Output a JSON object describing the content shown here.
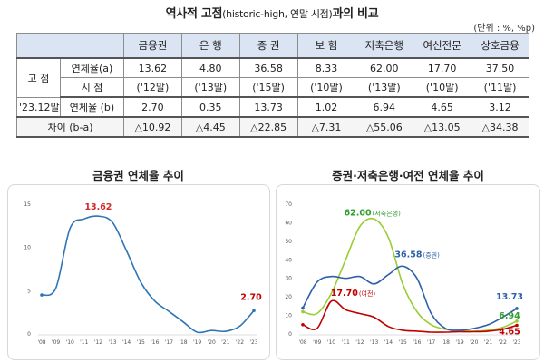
{
  "title_main": "역사적 고점",
  "title_paren": "(historic-high, 연말 시점)",
  "title_tail": "과의 비교",
  "unit": "(단위 : %, %p)",
  "table": {
    "header": [
      "금융권",
      "은  행",
      "증  권",
      "보  험",
      "저축은행",
      "여신전문",
      "상호금융"
    ],
    "peak_group": "고  점",
    "peak_rate_label": "연체율(a)",
    "peak_rate": [
      "13.62",
      "4.80",
      "36.58",
      "8.33",
      "62.00",
      "17.70",
      "37.50"
    ],
    "peak_time_label": "시      점",
    "peak_time": [
      "('12말)",
      "('13말)",
      "('15말)",
      "('10말)",
      "('13말)",
      "('10말)",
      "('11말)"
    ],
    "current_label_a": "'23.12말",
    "current_label_b": "연체율 (b)",
    "current_rate": [
      "2.70",
      "0.35",
      "13.73",
      "1.02",
      "6.94",
      "4.65",
      "3.12"
    ],
    "diff_label": "차이 (b-a)",
    "diff": [
      "△10.92",
      "△4.45",
      "△22.85",
      "△7.31",
      "△55.06",
      "△13.05",
      "△34.38"
    ]
  },
  "chart_data": [
    {
      "type": "line",
      "title": "금융권 연체율 추이",
      "x": [
        "'08",
        "'09",
        "'10",
        "'11",
        "'12",
        "'13",
        "'14",
        "'15",
        "'16",
        "'17",
        "'18",
        "'19",
        "'20",
        "'21",
        "'22",
        "'23"
      ],
      "ylim": [
        0,
        15
      ],
      "yticks": [
        0,
        5,
        10,
        15
      ],
      "series": [
        {
          "color": "#2e75b6",
          "values": [
            4.5,
            5.3,
            12.2,
            13.3,
            13.62,
            12.9,
            9.6,
            6.0,
            3.8,
            2.6,
            1.4,
            0.2,
            0.4,
            0.3,
            0.9,
            2.7
          ]
        }
      ],
      "annotations": [
        {
          "text": "13.62",
          "color": "#d62728",
          "at": "'12"
        },
        {
          "text": "2.70",
          "color": "#c00000",
          "at": "'23"
        }
      ]
    },
    {
      "type": "line",
      "title": "증권·저축은행·여전 연체율 추이",
      "x": [
        "'08",
        "'09",
        "'10",
        "'11",
        "'12",
        "'13",
        "'14",
        "'15",
        "'16",
        "'17",
        "'18",
        "'19",
        "'20",
        "'21",
        "'22",
        "'23"
      ],
      "ylim": [
        0,
        70
      ],
      "yticks": [
        0,
        10,
        20,
        30,
        40,
        50,
        60,
        70
      ],
      "series": [
        {
          "name": "저축은행",
          "color": "#9acd32",
          "values": [
            12,
            11,
            22,
            40,
            58,
            62.0,
            52,
            27,
            12,
            5,
            2.5,
            1.8,
            1.5,
            2.0,
            3.5,
            6.94
          ]
        },
        {
          "name": "증권",
          "color": "#2e5fa8",
          "values": [
            14,
            28,
            31,
            30,
            31,
            27,
            32,
            36.58,
            30,
            11,
            3,
            2,
            3,
            5,
            9,
            13.73
          ]
        },
        {
          "name": "여전",
          "color": "#c00000",
          "values": [
            5,
            3,
            17.7,
            13,
            11,
            9,
            4,
            2,
            1.5,
            1,
            1,
            1.2,
            1.2,
            1.5,
            2.5,
            4.65
          ]
        }
      ],
      "annotations": [
        {
          "text": "62.00",
          "sub": "(저축은행)",
          "color": "#2e9e2e"
        },
        {
          "text": "36.58",
          "sub": "(증권)",
          "color": "#2e5fa8"
        },
        {
          "text": "17.70",
          "sub": "(여전)",
          "color": "#c00000"
        },
        {
          "text": "13.73",
          "color": "#2e5fa8"
        },
        {
          "text": "6.94",
          "color": "#2e9e2e"
        },
        {
          "text": "4.65",
          "color": "#c00000"
        }
      ]
    }
  ]
}
